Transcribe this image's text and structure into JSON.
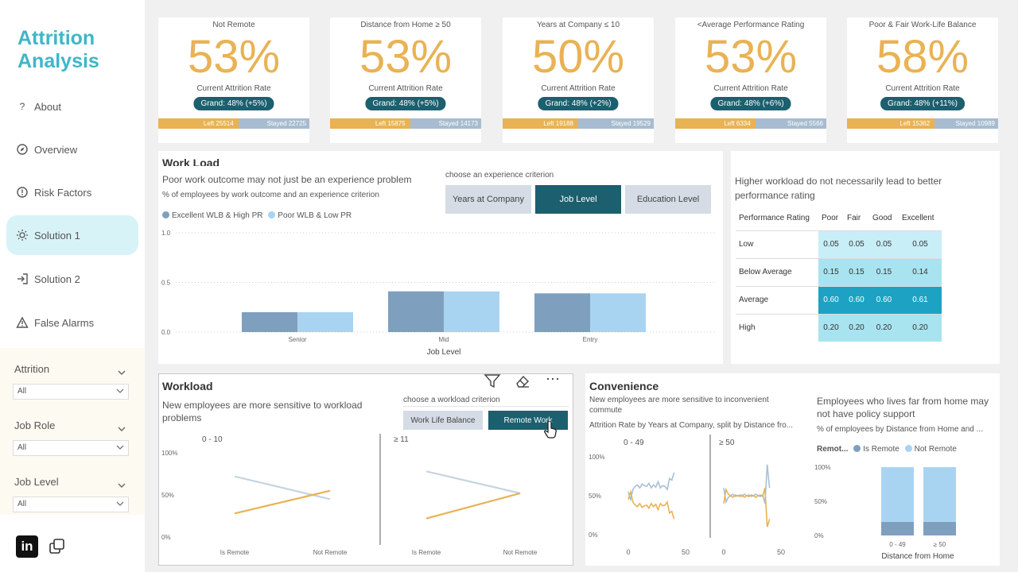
{
  "sidebar": {
    "title_line1": "Attrition",
    "title_line2": "Analysis",
    "nav": [
      {
        "label": "About",
        "icon": "question-icon"
      },
      {
        "label": "Overview",
        "icon": "compass-icon"
      },
      {
        "label": "Risk Factors",
        "icon": "alert-circle-icon"
      },
      {
        "label": "Solution 1",
        "icon": "sun-icon"
      },
      {
        "label": "Solution 2",
        "icon": "sign-in-icon"
      },
      {
        "label": "False Alarms",
        "icon": "warning-triangle-icon"
      }
    ],
    "filters": [
      {
        "label": "Attrition",
        "value": "All"
      },
      {
        "label": "Job Role",
        "value": "All"
      },
      {
        "label": "Job Level",
        "value": "All"
      }
    ]
  },
  "kpis": [
    {
      "title": "Not Remote",
      "pct": "53%",
      "subtitle": "Current Attrition Rate",
      "grand": "Grand:  48%  (+5%)",
      "left": "Left  25514",
      "stayed": "Stayed  22725",
      "left_share": 0.53
    },
    {
      "title": "Distance from Home ≥ 50",
      "pct": "53%",
      "subtitle": "Current Attrition Rate",
      "grand": "Grand:  48%  (+5%)",
      "left": "Left  15875",
      "stayed": "Stayed  14173",
      "left_share": 0.53
    },
    {
      "title": "Years at Company ≤ 10",
      "pct": "50%",
      "subtitle": "Current Attrition Rate",
      "grand": "Grand:  48%  (+2%)",
      "left": "Left  19188",
      "stayed": "Stayed  19529",
      "left_share": 0.5
    },
    {
      "title": "<Average Performance Rating",
      "pct": "53%",
      "subtitle": "Current Attrition Rate",
      "grand": "Grand:  48%  (+6%)",
      "left": "Left  6334",
      "stayed": "Stayed  5566",
      "left_share": 0.53
    },
    {
      "title": "Poor & Fair Work-Life Balance",
      "pct": "58%",
      "subtitle": "Current Attrition Rate",
      "grand": "Grand:  48%  (+11%)",
      "left": "Left  15362",
      "stayed": "Stayed  10989",
      "left_share": 0.58
    }
  ],
  "workload_top": {
    "heading": "Work Load",
    "headline": "Poor work outcome may not just be an experience problem",
    "caption": "% of employees by work outcome and an experience criterion",
    "legend": [
      "Excellent WLB & High PR",
      "Poor WLB & Low PR"
    ],
    "criterion_label": "choose an experience criterion",
    "buttons": [
      "Years at Company",
      "Job Level",
      "Education Level"
    ],
    "selected_button": 1,
    "y_ticks": [
      "1.0",
      "0.5",
      "0.0"
    ],
    "xlabel": "Job Level",
    "colors": {
      "series1": "#7f9fbf",
      "series2": "#a8d4f2"
    }
  },
  "perf_table": {
    "headline": "Higher workload do not necessarily lead to better performance rating",
    "header": [
      "Performance Rating",
      "Poor",
      "Fair",
      "Good",
      "Excellent"
    ],
    "rows": [
      {
        "label": "Low",
        "values": [
          "0.05",
          "0.05",
          "0.05",
          "0.05"
        ]
      },
      {
        "label": "Below Average",
        "values": [
          "0.15",
          "0.15",
          "0.15",
          "0.14"
        ]
      },
      {
        "label": "Average",
        "values": [
          "0.60",
          "0.60",
          "0.60",
          "0.61"
        ]
      },
      {
        "label": "High",
        "values": [
          "0.20",
          "0.20",
          "0.20",
          "0.20"
        ]
      }
    ]
  },
  "workload_bottom": {
    "heading": "Workload",
    "headline": "New employees are more sensitive to workload problems",
    "criterion_label": "choose a workload criterion",
    "buttons": [
      "Work Life Balance",
      "Remote Work"
    ],
    "selected_button": 1,
    "panel_titles": [
      "0 - 10",
      "≥ 11"
    ],
    "y_ticks": [
      "100%",
      "50%",
      "0%"
    ],
    "x_ticks": [
      "Is Remote",
      "Not Remote"
    ]
  },
  "convenience": {
    "heading": "Convenience",
    "headline": "New employees are more sensitive to inconvenient commute",
    "caption": "Attrition Rate by Years at Company, split by Distance fro...",
    "panel_titles": [
      "0 - 49",
      "≥ 50"
    ],
    "y_ticks": [
      "100%",
      "50%",
      "0%"
    ],
    "x_ticks": [
      "0",
      "50"
    ]
  },
  "policy": {
    "headline": "Employees who lives far from home may not have policy support",
    "caption": "% of employees by Distance from Home and ...",
    "legend_title": "Remot...",
    "legend": [
      "Is Remote",
      "Not Remote"
    ],
    "y_ticks": [
      "100%",
      "50%",
      "0%"
    ],
    "xlabel": "Distance from Home"
  },
  "chart_data": [
    {
      "type": "bar",
      "title": "% of employees by work outcome and an experience criterion",
      "xlabel": "Job Level",
      "ylabel": "",
      "ylim": [
        0,
        1
      ],
      "categories": [
        "Senior",
        "Mid",
        "Entry"
      ],
      "series": [
        {
          "name": "Excellent WLB & High PR",
          "values": [
            0.2,
            0.41,
            0.39
          ]
        },
        {
          "name": "Poor WLB & Low PR",
          "values": [
            0.2,
            0.41,
            0.39
          ]
        }
      ]
    },
    {
      "type": "line",
      "title": "0 - 10",
      "categories": [
        "Is Remote",
        "Not Remote"
      ],
      "ylim": [
        0,
        1
      ],
      "series": [
        {
          "name": "",
          "color": "#c5d4e0",
          "values": [
            0.72,
            0.45
          ]
        },
        {
          "name": "",
          "color": "#e9b254",
          "values": [
            0.28,
            0.55
          ]
        }
      ]
    },
    {
      "type": "line",
      "title": "≥ 11",
      "categories": [
        "Is Remote",
        "Not Remote"
      ],
      "ylim": [
        0,
        1
      ],
      "series": [
        {
          "name": "",
          "color": "#c5d4e0",
          "values": [
            0.78,
            0.52
          ]
        },
        {
          "name": "",
          "color": "#e9b254",
          "values": [
            0.22,
            0.52
          ]
        }
      ]
    },
    {
      "type": "line",
      "title": "0 - 49",
      "x_range": [
        0,
        50
      ],
      "ylim": [
        0,
        1
      ],
      "series": [
        {
          "name": "",
          "color": "#a8c0d4",
          "x": [
            0,
            2,
            4,
            6,
            8,
            10,
            12,
            14,
            16,
            18,
            20,
            22,
            24,
            26,
            28,
            30,
            32,
            34,
            36,
            38,
            40
          ],
          "values": [
            0.55,
            0.45,
            0.58,
            0.62,
            0.64,
            0.6,
            0.65,
            0.63,
            0.62,
            0.66,
            0.6,
            0.64,
            0.61,
            0.68,
            0.6,
            0.63,
            0.62,
            0.58,
            0.72,
            0.7,
            0.8
          ]
        },
        {
          "name": "",
          "color": "#e9b254",
          "x": [
            0,
            2,
            4,
            6,
            8,
            10,
            12,
            14,
            16,
            18,
            20,
            22,
            24,
            26,
            28,
            30,
            32,
            34,
            36,
            38,
            40
          ],
          "values": [
            0.45,
            0.55,
            0.42,
            0.38,
            0.36,
            0.4,
            0.35,
            0.37,
            0.38,
            0.34,
            0.4,
            0.36,
            0.39,
            0.32,
            0.4,
            0.37,
            0.38,
            0.42,
            0.28,
            0.3,
            0.2
          ]
        }
      ]
    },
    {
      "type": "line",
      "title": "≥ 50",
      "x_range": [
        0,
        50
      ],
      "ylim": [
        0,
        1
      ],
      "series": [
        {
          "name": "",
          "color": "#a8c0d4",
          "x": [
            0,
            2,
            4,
            6,
            8,
            10,
            12,
            14,
            16,
            18,
            20,
            22,
            24,
            26,
            28,
            30,
            32,
            34,
            36,
            38,
            40
          ],
          "values": [
            0.6,
            0.42,
            0.48,
            0.5,
            0.52,
            0.49,
            0.5,
            0.51,
            0.49,
            0.52,
            0.5,
            0.51,
            0.49,
            0.5,
            0.52,
            0.5,
            0.49,
            0.51,
            0.4,
            0.9,
            0.6
          ]
        },
        {
          "name": "",
          "color": "#e9b254",
          "x": [
            0,
            2,
            4,
            6,
            8,
            10,
            12,
            14,
            16,
            18,
            20,
            22,
            24,
            26,
            28,
            30,
            32,
            34,
            36,
            38,
            40
          ],
          "values": [
            0.4,
            0.58,
            0.52,
            0.5,
            0.48,
            0.51,
            0.5,
            0.49,
            0.51,
            0.48,
            0.5,
            0.49,
            0.51,
            0.5,
            0.48,
            0.5,
            0.51,
            0.49,
            0.6,
            0.1,
            0.2
          ]
        }
      ]
    },
    {
      "type": "bar",
      "title": "% of employees by Distance from Home and ...",
      "xlabel": "Distance from Home",
      "ylim": [
        0,
        1
      ],
      "categories": [
        "0 - 49",
        "≥ 50"
      ],
      "stacked": true,
      "series": [
        {
          "name": "Is Remote",
          "values": [
            0.2,
            0.2
          ]
        },
        {
          "name": "Not Remote",
          "values": [
            0.8,
            0.8
          ]
        }
      ]
    }
  ]
}
